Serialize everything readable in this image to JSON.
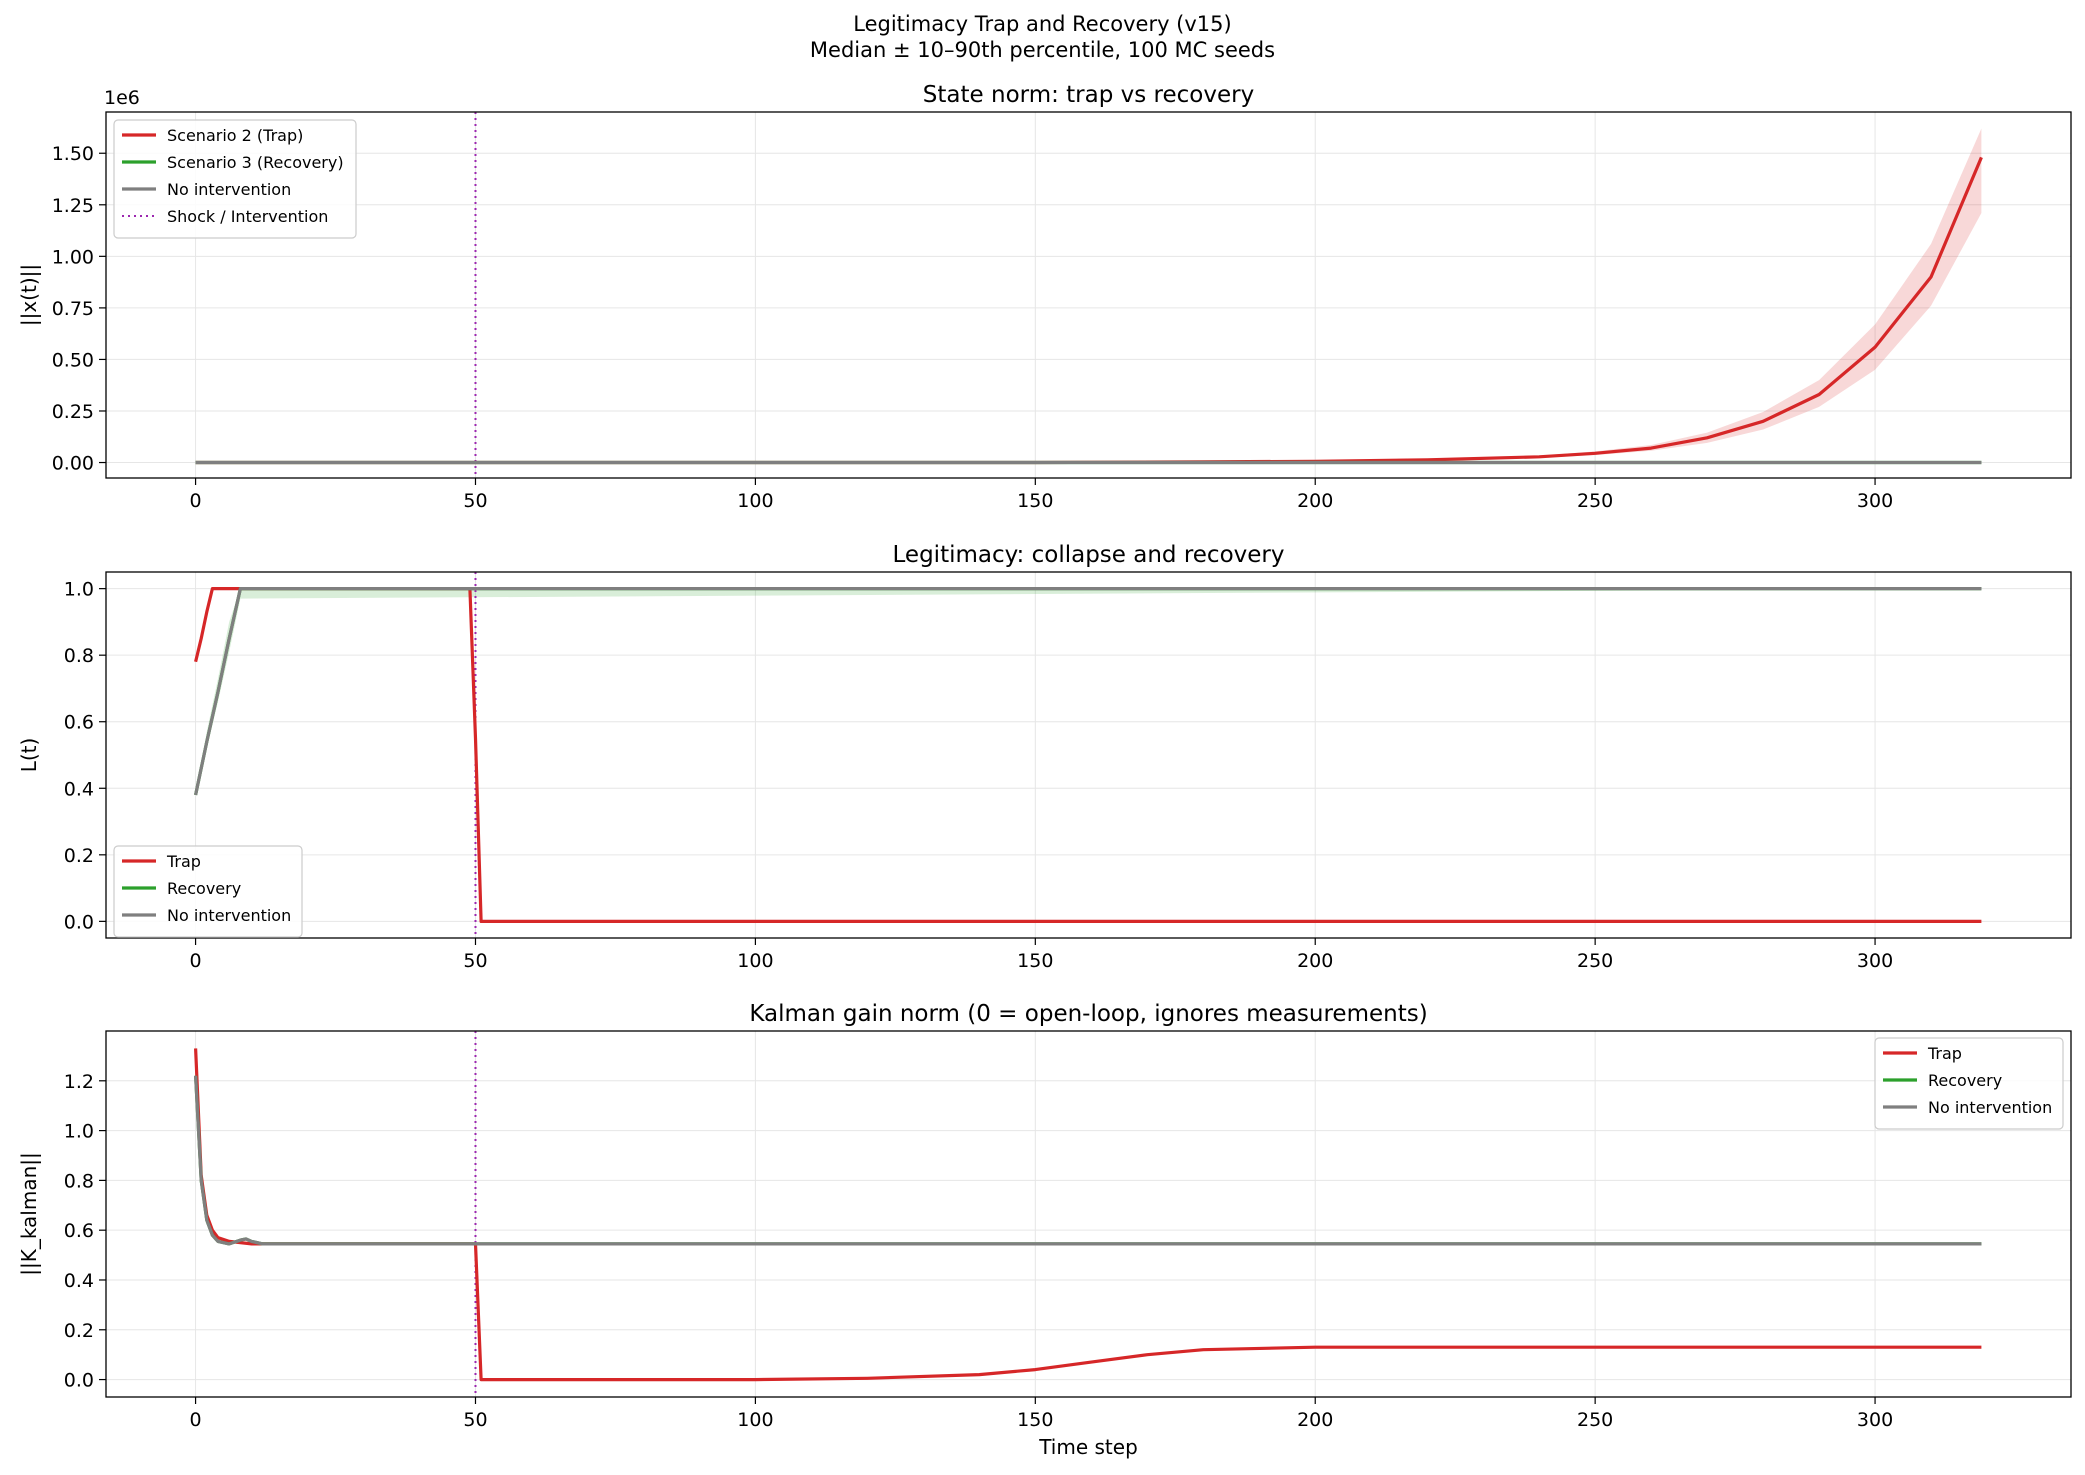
{
  "figure": {
    "title_line1": "Legitimacy Trap and Recovery (v15)",
    "title_line2": "Median ± 10–90th percentile, 100 MC seeds"
  },
  "colors": {
    "trap": "#d62728",
    "recovery": "#2ca02c",
    "no_intervention": "#7f7f7f",
    "shock_line": "#9c27b0"
  },
  "chart_data": [
    {
      "type": "line",
      "title": "State norm: trap vs recovery",
      "xlabel": "",
      "ylabel": "||x(t)||",
      "xlim": [
        -16,
        335
      ],
      "ylim": [
        -75000,
        1700000
      ],
      "xticks": [
        0,
        50,
        100,
        150,
        200,
        250,
        300
      ],
      "xtick_labels": [
        "0",
        "50",
        "100",
        "150",
        "200",
        "250",
        "300"
      ],
      "yticks": [
        0,
        250000,
        500000,
        750000,
        1000000,
        1250000,
        1500000
      ],
      "ytick_labels": [
        "0.00",
        "0.25",
        "0.50",
        "0.75",
        "1.00",
        "1.25",
        "1.50"
      ],
      "offset_label": "1e6",
      "grid": true,
      "legend_position": "upper-left",
      "vline": {
        "x": 50,
        "label": "Shock / Intervention"
      },
      "series": [
        {
          "name": "Scenario 2 (Trap)",
          "key": "trap",
          "x": [
            0,
            50,
            100,
            150,
            180,
            200,
            220,
            240,
            250,
            260,
            270,
            280,
            290,
            300,
            310,
            319
          ],
          "y": [
            0,
            0,
            0,
            0,
            3000,
            6000,
            13000,
            28000,
            45000,
            70000,
            120000,
            200000,
            330000,
            560000,
            900000,
            1480000
          ],
          "band_low": [
            0,
            0,
            0,
            0,
            2500,
            5000,
            11000,
            23000,
            36000,
            57000,
            95000,
            160000,
            270000,
            450000,
            760000,
            1210000
          ],
          "band_high": [
            0,
            0,
            0,
            0,
            3500,
            7000,
            15000,
            33000,
            54000,
            85000,
            145000,
            245000,
            400000,
            670000,
            1060000,
            1620000
          ]
        },
        {
          "name": "Scenario 3 (Recovery)",
          "key": "recovery",
          "x": [
            0,
            319
          ],
          "y": [
            0,
            0
          ]
        },
        {
          "name": "No intervention",
          "key": "no_intervention",
          "x": [
            0,
            319
          ],
          "y": [
            0,
            0
          ]
        }
      ]
    },
    {
      "type": "line",
      "title": "Legitimacy: collapse and recovery",
      "xlabel": "",
      "ylabel": "L(t)",
      "xlim": [
        -16,
        335
      ],
      "ylim": [
        -0.05,
        1.05
      ],
      "xticks": [
        0,
        50,
        100,
        150,
        200,
        250,
        300
      ],
      "xtick_labels": [
        "0",
        "50",
        "100",
        "150",
        "200",
        "250",
        "300"
      ],
      "yticks": [
        0,
        0.2,
        0.4,
        0.6,
        0.8,
        1.0
      ],
      "ytick_labels": [
        "0.0",
        "0.2",
        "0.4",
        "0.6",
        "0.8",
        "1.0"
      ],
      "grid": true,
      "legend_position": "lower-left",
      "vline": {
        "x": 50,
        "label": ""
      },
      "series": [
        {
          "name": "Trap",
          "key": "trap",
          "x": [
            0,
            1,
            2,
            3,
            49,
            50,
            51,
            319
          ],
          "y": [
            0.78,
            0.85,
            0.93,
            1.0,
            1.0,
            0.55,
            0.0,
            0.0
          ]
        },
        {
          "name": "Recovery",
          "key": "recovery",
          "x": [
            0,
            2,
            4,
            6,
            8,
            319
          ],
          "y": [
            0.38,
            0.54,
            0.69,
            0.85,
            1.0,
            1.0
          ],
          "band_low": [
            0.38,
            0.52,
            0.66,
            0.81,
            0.97,
            1.0
          ],
          "band_high": [
            0.38,
            0.57,
            0.73,
            0.9,
            1.0,
            1.0
          ]
        },
        {
          "name": "No intervention",
          "key": "no_intervention",
          "x": [
            0,
            2,
            4,
            6,
            8,
            319
          ],
          "y": [
            0.38,
            0.54,
            0.69,
            0.85,
            1.0,
            1.0
          ]
        }
      ]
    },
    {
      "type": "line",
      "title": "Kalman gain norm (0 = open-loop, ignores measurements)",
      "xlabel": "Time step",
      "ylabel": "||K_kalman||",
      "xlim": [
        -16,
        335
      ],
      "ylim": [
        -0.07,
        1.4
      ],
      "xticks": [
        0,
        50,
        100,
        150,
        200,
        250,
        300
      ],
      "xtick_labels": [
        "0",
        "50",
        "100",
        "150",
        "200",
        "250",
        "300"
      ],
      "yticks": [
        0,
        0.2,
        0.4,
        0.6,
        0.8,
        1.0,
        1.2
      ],
      "ytick_labels": [
        "0.0",
        "0.2",
        "0.4",
        "0.6",
        "0.8",
        "1.0",
        "1.2"
      ],
      "grid": true,
      "legend_position": "upper-right",
      "vline": {
        "x": 50,
        "label": ""
      },
      "series": [
        {
          "name": "Trap",
          "key": "trap",
          "x": [
            0,
            1,
            2,
            3,
            4,
            6,
            8,
            10,
            12,
            49,
            50,
            51,
            100,
            120,
            140,
            150,
            160,
            170,
            180,
            200,
            319
          ],
          "y": [
            1.33,
            0.82,
            0.66,
            0.6,
            0.57,
            0.555,
            0.55,
            0.545,
            0.545,
            0.545,
            0.545,
            0.0,
            0.0,
            0.005,
            0.02,
            0.04,
            0.07,
            0.1,
            0.12,
            0.13,
            0.13
          ]
        },
        {
          "name": "Recovery",
          "key": "recovery",
          "x": [
            0,
            1,
            2,
            3,
            4,
            6,
            8,
            9,
            10,
            12,
            319
          ],
          "y": [
            1.22,
            0.8,
            0.64,
            0.58,
            0.555,
            0.545,
            0.56,
            0.565,
            0.555,
            0.545,
            0.545
          ]
        },
        {
          "name": "No intervention",
          "key": "no_intervention",
          "x": [
            0,
            1,
            2,
            3,
            4,
            6,
            8,
            9,
            10,
            12,
            319
          ],
          "y": [
            1.22,
            0.8,
            0.64,
            0.58,
            0.555,
            0.545,
            0.56,
            0.565,
            0.555,
            0.545,
            0.545
          ]
        }
      ]
    }
  ],
  "legends": [
    {
      "items": [
        {
          "label": "Scenario 2 (Trap)",
          "key": "trap",
          "style": "solid"
        },
        {
          "label": "Scenario 3 (Recovery)",
          "key": "recovery",
          "style": "solid"
        },
        {
          "label": "No intervention",
          "key": "no_intervention",
          "style": "solid"
        },
        {
          "label": "Shock / Intervention",
          "key": "shock_line",
          "style": "dotted"
        }
      ]
    },
    {
      "items": [
        {
          "label": "Trap",
          "key": "trap",
          "style": "solid"
        },
        {
          "label": "Recovery",
          "key": "recovery",
          "style": "solid"
        },
        {
          "label": "No intervention",
          "key": "no_intervention",
          "style": "solid"
        }
      ]
    },
    {
      "items": [
        {
          "label": "Trap",
          "key": "trap",
          "style": "solid"
        },
        {
          "label": "Recovery",
          "key": "recovery",
          "style": "solid"
        },
        {
          "label": "No intervention",
          "key": "no_intervention",
          "style": "solid"
        }
      ]
    }
  ]
}
